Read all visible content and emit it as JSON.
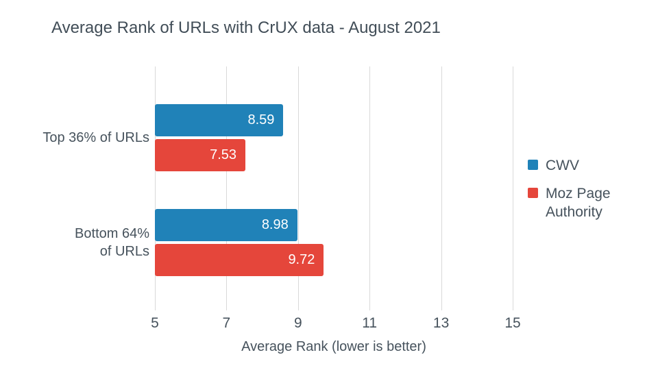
{
  "title": "Average Rank of URLs with CrUX data - August 2021",
  "chart_data": {
    "type": "bar",
    "orientation": "horizontal",
    "title": "Average Rank of URLs with CrUX data - August 2021",
    "categories": [
      "Top 36% of URLs",
      "Bottom 64% of URLs"
    ],
    "category_labels": [
      "Top 36% of URLs",
      "Bottom 64%\nof URLs"
    ],
    "series": [
      {
        "name": "CWV",
        "color": "#2082B8",
        "values": [
          8.59,
          8.98
        ]
      },
      {
        "name": "Moz Page Authority",
        "color": "#E5463B",
        "values": [
          7.53,
          9.72
        ]
      }
    ],
    "xlabel": "Average Rank (lower is better)",
    "xticks": [
      5,
      7,
      9,
      11,
      13,
      15
    ],
    "xlim": [
      5,
      15
    ],
    "grid": "vertical",
    "gridline_color": "#D9D9D9",
    "legend_position": "right",
    "text_color": "#46525C"
  }
}
